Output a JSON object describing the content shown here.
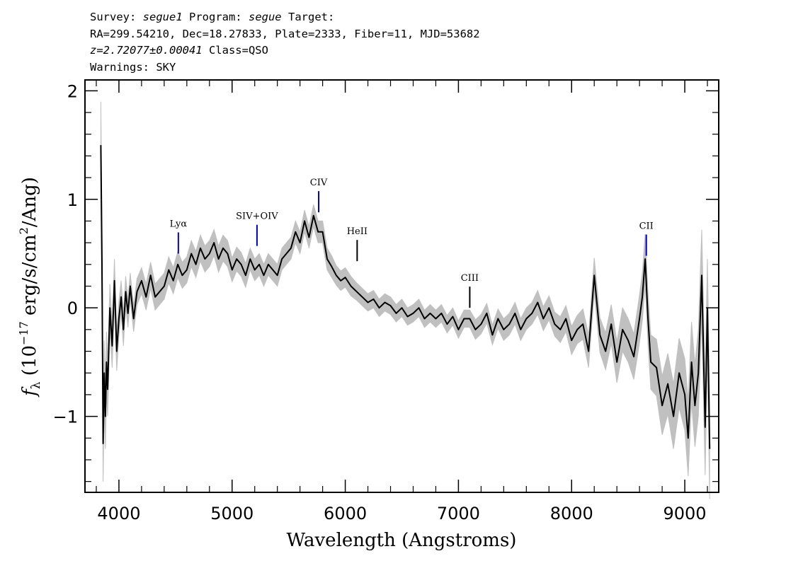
{
  "header": {
    "line1_a": "Survey: ",
    "survey": "segue1",
    "line1_b": " Program: ",
    "program": "segue",
    "line1_c": " Target:",
    "line2": "RA=299.54210, Dec=18.27833, Plate=2333, Fiber=11, MJD=53682",
    "redshift": "z=2.72077±0.00041",
    "class": " Class=QSO",
    "warnings": "Warnings: SKY"
  },
  "chart_data": {
    "type": "line",
    "xlabel": "Wavelength (Angstroms)",
    "ylabel_prefix": "f",
    "ylabel_sub": "λ",
    "ylabel_main": " (10",
    "ylabel_exp": "−17",
    "ylabel_units": " erg/s/cm",
    "ylabel_units_exp": "2",
    "ylabel_tail": "/Ang)",
    "xlim": [
      3700,
      9300
    ],
    "ylim": [
      -1.7,
      2.1
    ],
    "x_ticks": [
      4000,
      5000,
      6000,
      7000,
      8000,
      9000
    ],
    "x_tick_labels": [
      "4000",
      "5000",
      "6000",
      "7000",
      "8000",
      "9000"
    ],
    "y_ticks": [
      -1,
      0,
      1,
      2
    ],
    "y_tick_labels": [
      "−1",
      "0",
      "1",
      "2"
    ],
    "grid": false,
    "series": [
      {
        "role": "flux",
        "color": "#000000",
        "x": [
          3840,
          3850,
          3860,
          3870,
          3880,
          3890,
          3900,
          3920,
          3940,
          3960,
          3980,
          4000,
          4020,
          4040,
          4060,
          4080,
          4100,
          4130,
          4160,
          4200,
          4240,
          4280,
          4320,
          4360,
          4400,
          4440,
          4480,
          4520,
          4560,
          4600,
          4640,
          4680,
          4720,
          4760,
          4800,
          4840,
          4880,
          4920,
          4960,
          5000,
          5040,
          5080,
          5120,
          5160,
          5200,
          5240,
          5280,
          5320,
          5360,
          5400,
          5440,
          5480,
          5520,
          5560,
          5600,
          5640,
          5680,
          5720,
          5760,
          5800,
          5840,
          5880,
          5920,
          5960,
          6000,
          6050,
          6100,
          6150,
          6200,
          6250,
          6300,
          6350,
          6400,
          6450,
          6500,
          6550,
          6600,
          6650,
          6700,
          6750,
          6800,
          6850,
          6900,
          6950,
          7000,
          7050,
          7100,
          7150,
          7200,
          7250,
          7300,
          7350,
          7400,
          7450,
          7500,
          7550,
          7600,
          7650,
          7700,
          7750,
          7800,
          7850,
          7900,
          7950,
          8000,
          8050,
          8100,
          8150,
          8200,
          8250,
          8300,
          8350,
          8400,
          8450,
          8500,
          8550,
          8600,
          8625,
          8650,
          8675,
          8700,
          8750,
          8800,
          8850,
          8900,
          8950,
          9000,
          9030,
          9060,
          9090,
          9120,
          9150,
          9180,
          9200,
          9220
        ],
        "y": [
          1.5,
          0.4,
          -1.25,
          -0.6,
          -1.0,
          -0.5,
          -0.75,
          0.0,
          -0.35,
          0.25,
          -0.4,
          -0.1,
          0.1,
          -0.2,
          0.15,
          -0.05,
          0.2,
          -0.1,
          0.15,
          0.25,
          0.1,
          0.3,
          0.1,
          0.15,
          0.2,
          0.35,
          0.25,
          0.4,
          0.3,
          0.35,
          0.5,
          0.4,
          0.55,
          0.45,
          0.5,
          0.6,
          0.45,
          0.55,
          0.5,
          0.35,
          0.45,
          0.4,
          0.3,
          0.45,
          0.35,
          0.4,
          0.3,
          0.4,
          0.35,
          0.3,
          0.45,
          0.5,
          0.55,
          0.7,
          0.6,
          0.8,
          0.65,
          0.85,
          0.7,
          0.7,
          0.45,
          0.38,
          0.3,
          0.25,
          0.28,
          0.2,
          0.15,
          0.1,
          0.05,
          0.08,
          0.0,
          0.05,
          0.02,
          -0.05,
          0.0,
          -0.08,
          -0.05,
          0.0,
          -0.1,
          -0.05,
          -0.1,
          -0.05,
          -0.15,
          -0.08,
          -0.2,
          -0.1,
          -0.1,
          -0.2,
          -0.15,
          -0.05,
          -0.25,
          -0.1,
          -0.2,
          -0.15,
          -0.05,
          -0.2,
          -0.1,
          -0.05,
          0.05,
          -0.1,
          0.0,
          -0.15,
          -0.2,
          -0.1,
          -0.3,
          -0.2,
          -0.15,
          -0.4,
          0.3,
          -0.25,
          -0.4,
          -0.15,
          -0.5,
          -0.2,
          -0.3,
          -0.45,
          -0.1,
          0.1,
          0.45,
          -0.1,
          -0.5,
          -0.55,
          -0.9,
          -0.7,
          -1.0,
          -0.6,
          -0.8,
          -1.2,
          -0.5,
          -0.9,
          -0.6,
          0.3,
          -1.1,
          0.0,
          -1.3
        ],
        "error": [
          0.4,
          0.35,
          0.35,
          0.3,
          0.3,
          0.28,
          0.25,
          0.22,
          0.2,
          0.2,
          0.18,
          0.16,
          0.15,
          0.15,
          0.14,
          0.13,
          0.12,
          0.12,
          0.12,
          0.12,
          0.12,
          0.12,
          0.12,
          0.12,
          0.12,
          0.12,
          0.12,
          0.12,
          0.12,
          0.12,
          0.12,
          0.12,
          0.12,
          0.12,
          0.12,
          0.12,
          0.12,
          0.12,
          0.12,
          0.11,
          0.11,
          0.11,
          0.11,
          0.1,
          0.1,
          0.1,
          0.1,
          0.1,
          0.1,
          0.1,
          0.1,
          0.1,
          0.1,
          0.1,
          0.1,
          0.1,
          0.1,
          0.1,
          0.1,
          0.1,
          0.1,
          0.1,
          0.09,
          0.09,
          0.09,
          0.09,
          0.08,
          0.08,
          0.08,
          0.08,
          0.08,
          0.08,
          0.08,
          0.08,
          0.08,
          0.08,
          0.08,
          0.08,
          0.08,
          0.08,
          0.08,
          0.08,
          0.08,
          0.08,
          0.08,
          0.08,
          0.08,
          0.09,
          0.09,
          0.09,
          0.09,
          0.09,
          0.1,
          0.1,
          0.1,
          0.1,
          0.1,
          0.1,
          0.11,
          0.11,
          0.11,
          0.11,
          0.12,
          0.12,
          0.13,
          0.13,
          0.14,
          0.15,
          0.16,
          0.16,
          0.17,
          0.18,
          0.19,
          0.2,
          0.2,
          0.21,
          0.22,
          0.22,
          0.23,
          0.24,
          0.25,
          0.26,
          0.27,
          0.28,
          0.3,
          0.32,
          0.33,
          0.35,
          0.37,
          0.38,
          0.4,
          0.42,
          0.44,
          0.45,
          0.46
        ]
      }
    ],
    "error_color": "#c0c0c0",
    "emission_lines": [
      {
        "label": "Lyα",
        "x": 4525,
        "y": 0.5,
        "color": "#0000cc"
      },
      {
        "label": "SIV+OIV",
        "x": 5220,
        "y": 0.57,
        "color": "#0000cc"
      },
      {
        "label": "CIV",
        "x": 5765,
        "y": 0.88,
        "color": "#0000cc"
      },
      {
        "label": "HeII",
        "x": 6105,
        "y": 0.43,
        "color": "#000000"
      },
      {
        "label": "CIII",
        "x": 7100,
        "y": 0.0,
        "color": "#000000"
      },
      {
        "label": "CII",
        "x": 8660,
        "y": 0.48,
        "color": "#0000cc"
      }
    ]
  }
}
